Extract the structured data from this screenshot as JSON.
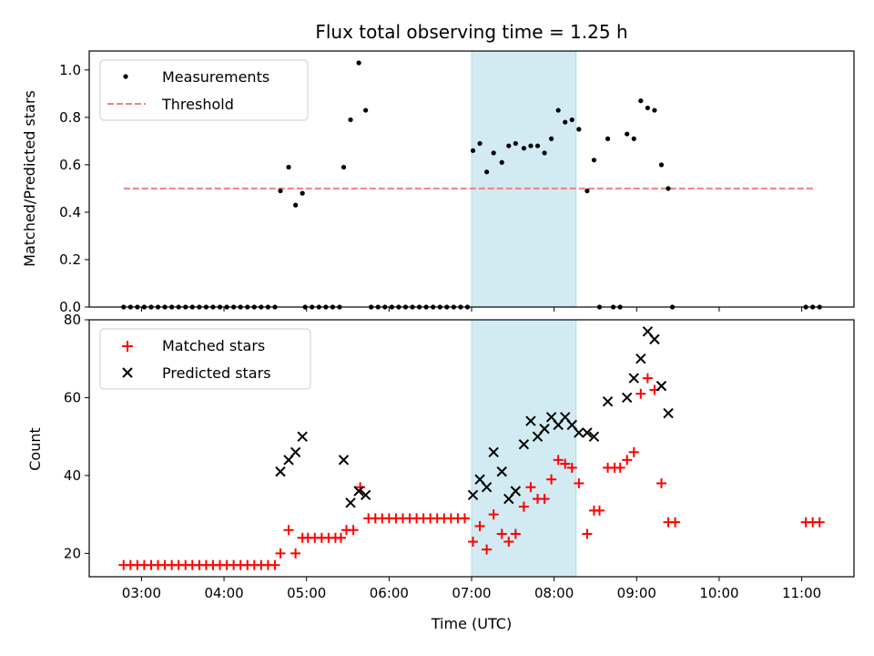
{
  "chart_data": [
    {
      "type": "scatter",
      "title": "Flux total observing time = 1.25 h",
      "xlabel": "",
      "ylabel": "Matched/Predicted stars",
      "ylim": [
        0,
        1.08
      ],
      "yticks": [
        "0.0",
        "0.2",
        "0.4",
        "0.6",
        "0.8",
        "1.0"
      ],
      "ytick_values": [
        0,
        0.2,
        0.4,
        0.6,
        0.8,
        1.0
      ],
      "xlim": [
        "02:22",
        "11:38"
      ],
      "grid": false,
      "legend": "top-left",
      "shaded_interval": {
        "start": "07:00",
        "end": "08:16",
        "color": "#add8e6"
      },
      "threshold": {
        "value": 0.5,
        "start": "02:47",
        "end": "11:10",
        "color": "#f08080"
      },
      "series": [
        {
          "name": "Measurements",
          "color": "#000000",
          "marker": "dot",
          "points": [
            [
              "02:47",
              0
            ],
            [
              "02:52",
              0
            ],
            [
              "02:57",
              0
            ],
            [
              "03:02",
              0
            ],
            [
              "03:07",
              0
            ],
            [
              "03:12",
              0
            ],
            [
              "03:17",
              0
            ],
            [
              "03:22",
              0
            ],
            [
              "03:27",
              0
            ],
            [
              "03:32",
              0
            ],
            [
              "03:37",
              0
            ],
            [
              "03:42",
              0
            ],
            [
              "03:47",
              0
            ],
            [
              "03:52",
              0
            ],
            [
              "03:57",
              0
            ],
            [
              "04:02",
              0
            ],
            [
              "04:07",
              0
            ],
            [
              "04:12",
              0
            ],
            [
              "04:17",
              0
            ],
            [
              "04:22",
              0
            ],
            [
              "04:27",
              0
            ],
            [
              "04:32",
              0
            ],
            [
              "04:37",
              0
            ],
            [
              "04:41",
              0.49
            ],
            [
              "04:47",
              0.59
            ],
            [
              "04:52",
              0.43
            ],
            [
              "04:57",
              0.48
            ],
            [
              "04:59",
              0
            ],
            [
              "05:04",
              0
            ],
            [
              "05:09",
              0
            ],
            [
              "05:14",
              0
            ],
            [
              "05:19",
              0
            ],
            [
              "05:24",
              0
            ],
            [
              "05:27",
              0.59
            ],
            [
              "05:32",
              0.79
            ],
            [
              "05:38",
              1.03
            ],
            [
              "05:43",
              0.83
            ],
            [
              "05:47",
              0
            ],
            [
              "05:52",
              0
            ],
            [
              "05:57",
              0
            ],
            [
              "06:02",
              0
            ],
            [
              "06:07",
              0
            ],
            [
              "06:12",
              0
            ],
            [
              "06:17",
              0
            ],
            [
              "06:22",
              0
            ],
            [
              "06:27",
              0
            ],
            [
              "06:32",
              0
            ],
            [
              "06:37",
              0
            ],
            [
              "06:42",
              0
            ],
            [
              "06:47",
              0
            ],
            [
              "06:52",
              0
            ],
            [
              "06:57",
              0
            ],
            [
              "07:01",
              0.66
            ],
            [
              "07:06",
              0.69
            ],
            [
              "07:11",
              0.57
            ],
            [
              "07:16",
              0.65
            ],
            [
              "07:22",
              0.61
            ],
            [
              "07:27",
              0.68
            ],
            [
              "07:32",
              0.69
            ],
            [
              "07:38",
              0.67
            ],
            [
              "07:43",
              0.68
            ],
            [
              "07:48",
              0.68
            ],
            [
              "07:53",
              0.65
            ],
            [
              "07:58",
              0.71
            ],
            [
              "08:03",
              0.83
            ],
            [
              "08:08",
              0.78
            ],
            [
              "08:13",
              0.79
            ],
            [
              "08:18",
              0.75
            ],
            [
              "08:24",
              0.49
            ],
            [
              "08:29",
              0.62
            ],
            [
              "08:33",
              0
            ],
            [
              "08:39",
              0.71
            ],
            [
              "08:43",
              0
            ],
            [
              "08:48",
              0
            ],
            [
              "08:53",
              0.73
            ],
            [
              "08:58",
              0.71
            ],
            [
              "09:03",
              0.87
            ],
            [
              "09:08",
              0.84
            ],
            [
              "09:13",
              0.83
            ],
            [
              "09:18",
              0.6
            ],
            [
              "09:23",
              0.5
            ],
            [
              "09:26",
              0
            ],
            [
              "11:03",
              0
            ],
            [
              "11:08",
              0
            ],
            [
              "11:13",
              0
            ]
          ]
        },
        {
          "name": "Threshold",
          "color": "#f08080",
          "style": "dashed",
          "points": []
        }
      ]
    },
    {
      "type": "scatter",
      "title": "",
      "xlabel": "Time (UTC)",
      "ylabel": "Count",
      "ylim": [
        14,
        80
      ],
      "yticks": [
        "20",
        "40",
        "60",
        "80"
      ],
      "ytick_values": [
        20,
        40,
        60,
        80
      ],
      "xlim": [
        "02:22",
        "11:38"
      ],
      "xticks": [
        "03:00",
        "04:00",
        "05:00",
        "06:00",
        "07:00",
        "08:00",
        "09:00",
        "10:00",
        "11:00"
      ],
      "grid": false,
      "legend": "top-left",
      "shaded_interval": {
        "start": "07:00",
        "end": "08:16",
        "color": "#add8e6"
      },
      "series": [
        {
          "name": "Matched stars",
          "color": "#ff0000",
          "marker": "plus",
          "points": [
            [
              "02:47",
              17
            ],
            [
              "02:52",
              17
            ],
            [
              "02:57",
              17
            ],
            [
              "03:02",
              17
            ],
            [
              "03:07",
              17
            ],
            [
              "03:12",
              17
            ],
            [
              "03:17",
              17
            ],
            [
              "03:22",
              17
            ],
            [
              "03:27",
              17
            ],
            [
              "03:32",
              17
            ],
            [
              "03:37",
              17
            ],
            [
              "03:42",
              17
            ],
            [
              "03:47",
              17
            ],
            [
              "03:52",
              17
            ],
            [
              "03:57",
              17
            ],
            [
              "04:02",
              17
            ],
            [
              "04:07",
              17
            ],
            [
              "04:12",
              17
            ],
            [
              "04:17",
              17
            ],
            [
              "04:22",
              17
            ],
            [
              "04:27",
              17
            ],
            [
              "04:32",
              17
            ],
            [
              "04:37",
              17
            ],
            [
              "04:41",
              20
            ],
            [
              "04:47",
              26
            ],
            [
              "04:52",
              20
            ],
            [
              "04:57",
              24
            ],
            [
              "05:01",
              24
            ],
            [
              "05:06",
              24
            ],
            [
              "05:11",
              24
            ],
            [
              "05:16",
              24
            ],
            [
              "05:21",
              24
            ],
            [
              "05:25",
              24
            ],
            [
              "05:29",
              26
            ],
            [
              "05:34",
              26
            ],
            [
              "05:39",
              37
            ],
            [
              "05:45",
              29
            ],
            [
              "05:50",
              29
            ],
            [
              "05:55",
              29
            ],
            [
              "06:00",
              29
            ],
            [
              "06:05",
              29
            ],
            [
              "06:10",
              29
            ],
            [
              "06:15",
              29
            ],
            [
              "06:20",
              29
            ],
            [
              "06:25",
              29
            ],
            [
              "06:30",
              29
            ],
            [
              "06:35",
              29
            ],
            [
              "06:40",
              29
            ],
            [
              "06:45",
              29
            ],
            [
              "06:50",
              29
            ],
            [
              "06:55",
              29
            ],
            [
              "07:01",
              23
            ],
            [
              "07:06",
              27
            ],
            [
              "07:11",
              21
            ],
            [
              "07:16",
              30
            ],
            [
              "07:22",
              25
            ],
            [
              "07:27",
              23
            ],
            [
              "07:32",
              25
            ],
            [
              "07:38",
              32
            ],
            [
              "07:43",
              37
            ],
            [
              "07:48",
              34
            ],
            [
              "07:53",
              34
            ],
            [
              "07:58",
              39
            ],
            [
              "08:03",
              44
            ],
            [
              "08:08",
              43
            ],
            [
              "08:13",
              42
            ],
            [
              "08:18",
              38
            ],
            [
              "08:24",
              25
            ],
            [
              "08:29",
              31
            ],
            [
              "08:33",
              31
            ],
            [
              "08:39",
              42
            ],
            [
              "08:44",
              42
            ],
            [
              "08:48",
              42
            ],
            [
              "08:53",
              44
            ],
            [
              "08:58",
              46
            ],
            [
              "09:03",
              61
            ],
            [
              "09:08",
              65
            ],
            [
              "09:13",
              62
            ],
            [
              "09:18",
              38
            ],
            [
              "09:23",
              28
            ],
            [
              "09:28",
              28
            ],
            [
              "11:03",
              28
            ],
            [
              "11:08",
              28
            ],
            [
              "11:13",
              28
            ]
          ]
        },
        {
          "name": "Predicted stars",
          "color": "#000000",
          "marker": "x",
          "points": [
            [
              "04:41",
              41
            ],
            [
              "04:47",
              44
            ],
            [
              "04:52",
              46
            ],
            [
              "04:57",
              50
            ],
            [
              "05:27",
              44
            ],
            [
              "05:32",
              33
            ],
            [
              "05:38",
              36
            ],
            [
              "05:43",
              35
            ],
            [
              "07:01",
              35
            ],
            [
              "07:06",
              39
            ],
            [
              "07:11",
              37
            ],
            [
              "07:16",
              46
            ],
            [
              "07:22",
              41
            ],
            [
              "07:27",
              34
            ],
            [
              "07:32",
              36
            ],
            [
              "07:38",
              48
            ],
            [
              "07:43",
              54
            ],
            [
              "07:48",
              50
            ],
            [
              "07:53",
              52
            ],
            [
              "07:58",
              55
            ],
            [
              "08:03",
              53
            ],
            [
              "08:08",
              55
            ],
            [
              "08:13",
              53
            ],
            [
              "08:18",
              51
            ],
            [
              "08:24",
              51
            ],
            [
              "08:29",
              50
            ],
            [
              "08:39",
              59
            ],
            [
              "08:53",
              60
            ],
            [
              "08:58",
              65
            ],
            [
              "09:03",
              70
            ],
            [
              "09:08",
              77
            ],
            [
              "09:13",
              75
            ],
            [
              "09:18",
              63
            ],
            [
              "09:23",
              56
            ]
          ]
        }
      ]
    }
  ]
}
